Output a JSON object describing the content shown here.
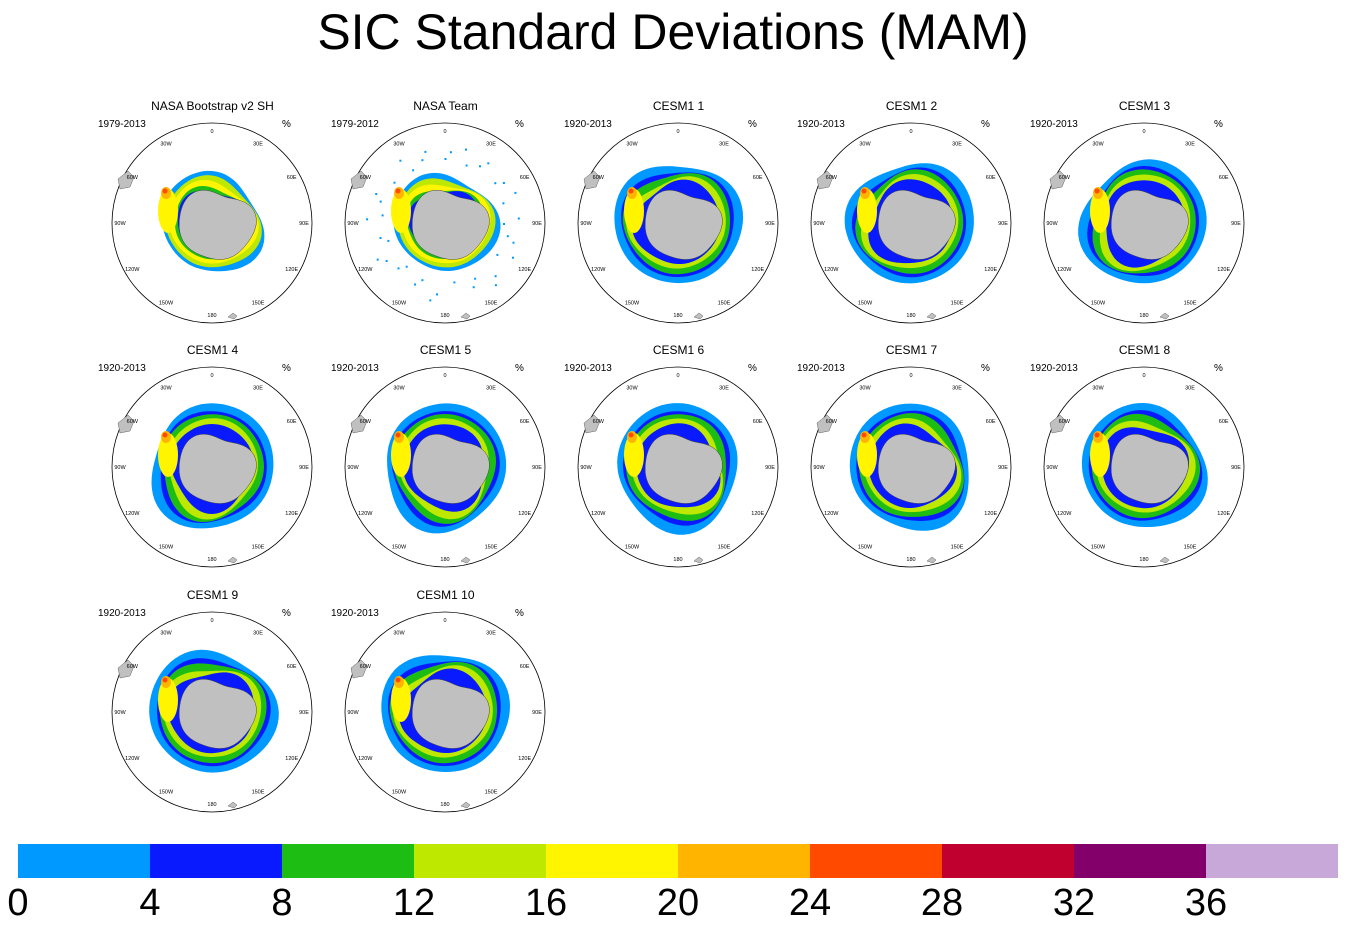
{
  "title": "SIC Standard Deviations (MAM)",
  "unit_label": "%",
  "panels": [
    {
      "title": "NASA Bootstrap v2 SH",
      "years": "1979-2013"
    },
    {
      "title": "NASA Team",
      "years": "1979-2012"
    },
    {
      "title": "CESM1 1",
      "years": "1920-2013"
    },
    {
      "title": "CESM1 2",
      "years": "1920-2013"
    },
    {
      "title": "CESM1 3",
      "years": "1920-2013"
    },
    {
      "title": "CESM1 4",
      "years": "1920-2013"
    },
    {
      "title": "CESM1 5",
      "years": "1920-2013"
    },
    {
      "title": "CESM1 6",
      "years": "1920-2013"
    },
    {
      "title": "CESM1 7",
      "years": "1920-2013"
    },
    {
      "title": "CESM1 8",
      "years": "1920-2013"
    },
    {
      "title": "CESM1 9",
      "years": "1920-2013"
    },
    {
      "title": "CESM1 10",
      "years": "1920-2013"
    }
  ],
  "longitude_labels": [
    "0",
    "30E",
    "60E",
    "90E",
    "120E",
    "150E",
    "180",
    "150W",
    "120W",
    "90W",
    "60W",
    "30W"
  ],
  "colorbar": {
    "colors": [
      "#0099ff",
      "#0a1aff",
      "#1ebd14",
      "#bfe800",
      "#fff500",
      "#ffb400",
      "#ff4a00",
      "#c0002e",
      "#83006b",
      "#c8a8d8"
    ],
    "labels": [
      "0",
      "4",
      "8",
      "12",
      "16",
      "20",
      "24",
      "28",
      "32",
      "36"
    ]
  },
  "land_color": "#c0c0c0"
}
